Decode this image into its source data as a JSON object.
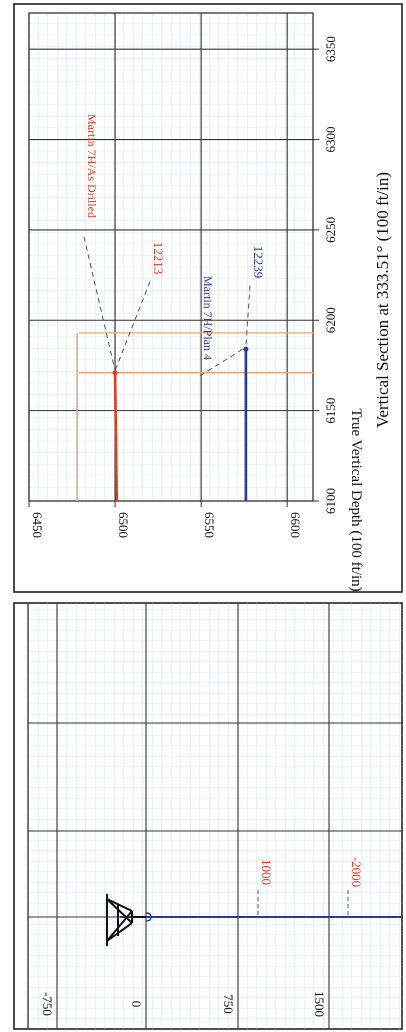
{
  "chart_data": [
    {
      "type": "line",
      "title": "",
      "xlabel": "Vertical Section at 333.51° (100 ft/in)",
      "ylabel": "True Vertical Depth (100 ft/in)",
      "x_ticks": [
        "6100",
        "6150",
        "6200",
        "6250",
        "6300",
        "6350"
      ],
      "y_ticks": [
        "6450",
        "6500",
        "6550",
        "6600"
      ],
      "xlim": [
        6100,
        6370
      ],
      "ylim": [
        6450,
        6615
      ],
      "y_inverted": true,
      "grid": true,
      "series": [
        {
          "name": "Martin 7H/As Drilled",
          "color": "#e8391f",
          "x": [
            6100,
            6171
          ],
          "y": [
            6501,
            6500
          ],
          "marker_label": "12213",
          "marker_at": [
            6171,
            6500
          ]
        },
        {
          "name": "Martin 7H/Plan 4",
          "color": "#2b3a9a",
          "x": [
            6100,
            6184
          ],
          "y": [
            6576,
            6576
          ],
          "marker_label": "12239",
          "marker_at": [
            6184,
            6576
          ]
        }
      ],
      "reference_lines": [
        {
          "axis": "x",
          "value": 6171,
          "color": "#f0a070"
        },
        {
          "axis": "x",
          "value": 6193,
          "color": "#f0a070"
        },
        {
          "axis": "y",
          "value": 6478,
          "color": "#f0a070"
        }
      ],
      "series_labels": [
        {
          "text": "Martin 7H/As Drilled",
          "color": "#e8391f"
        },
        {
          "text": "12213",
          "color": "#e8391f"
        },
        {
          "text": "Martin 7H/Plan 4",
          "color": "#2b3a9a"
        },
        {
          "text": "12239",
          "color": "#2b3a9a"
        }
      ]
    },
    {
      "type": "line",
      "title": "",
      "y_ticks": [
        "-750",
        "0",
        "750",
        "1500"
      ],
      "annotations": [
        "1000",
        "-2000"
      ],
      "annotation_color": "#e8391f",
      "well_color": "#2b3a9a",
      "grid": true,
      "icon": "drilling-rig-icon"
    }
  ]
}
